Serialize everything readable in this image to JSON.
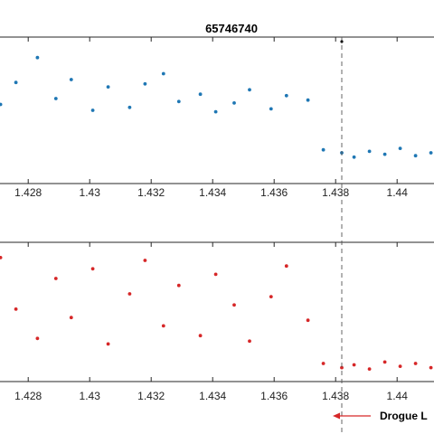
{
  "chart_data": [
    {
      "type": "scatter",
      "title": "65746740",
      "xlabel": "",
      "ylabel": "",
      "xlim": [
        1.4262,
        1.4412
      ],
      "ylim": [
        0,
        10
      ],
      "grid": false,
      "color": "#1f77b4",
      "x_ticks": [
        1.428,
        1.43,
        1.432,
        1.434,
        1.436,
        1.438,
        1.44
      ],
      "x_tick_labels": [
        "1.428",
        "1.43",
        "1.432",
        "1.434",
        "1.436",
        "1.438",
        "1.44"
      ],
      "series": [
        {
          "x": [
            1.4271,
            1.4276,
            1.4283,
            1.4289,
            1.4294,
            1.4301,
            1.4306,
            1.4313,
            1.4318,
            1.4324,
            1.4329,
            1.4336,
            1.4341,
            1.4347,
            1.4352,
            1.4359,
            1.4364,
            1.4371,
            1.4376,
            1.4382,
            1.4386,
            1.4391,
            1.4396,
            1.4401,
            1.4406,
            1.4411
          ],
          "y": [
            5.4,
            6.9,
            8.6,
            5.8,
            7.1,
            5.0,
            6.6,
            5.2,
            6.8,
            7.5,
            5.6,
            6.1,
            4.9,
            5.5,
            6.4,
            5.1,
            6.0,
            5.7,
            2.3,
            2.1,
            1.8,
            2.2,
            2.0,
            2.4,
            1.9,
            2.1
          ]
        }
      ]
    },
    {
      "type": "scatter",
      "title": "",
      "xlabel": "",
      "ylabel": "",
      "xlim": [
        1.4262,
        1.4412
      ],
      "ylim": [
        0,
        10
      ],
      "grid": false,
      "color": "#d62728",
      "x_ticks": [
        1.428,
        1.43,
        1.432,
        1.434,
        1.436,
        1.438,
        1.44
      ],
      "x_tick_labels": [
        "1.428",
        "1.43",
        "1.432",
        "1.434",
        "1.436",
        "1.438",
        "1.44"
      ],
      "series": [
        {
          "x": [
            1.4271,
            1.4276,
            1.4283,
            1.4289,
            1.4294,
            1.4301,
            1.4306,
            1.4313,
            1.4318,
            1.4324,
            1.4329,
            1.4336,
            1.4341,
            1.4347,
            1.4352,
            1.4359,
            1.4364,
            1.4371,
            1.4376,
            1.4382,
            1.4386,
            1.4391,
            1.4396,
            1.4401,
            1.4406,
            1.4411
          ],
          "y": [
            8.9,
            5.2,
            3.1,
            7.4,
            4.6,
            8.1,
            2.7,
            6.3,
            8.7,
            4.0,
            6.9,
            3.3,
            7.7,
            5.5,
            2.9,
            6.1,
            8.3,
            4.4,
            1.3,
            1.0,
            1.2,
            0.9,
            1.4,
            1.1,
            1.3,
            1.0
          ]
        }
      ]
    }
  ],
  "event": {
    "x": 1.4382,
    "label": "Drogue L"
  }
}
